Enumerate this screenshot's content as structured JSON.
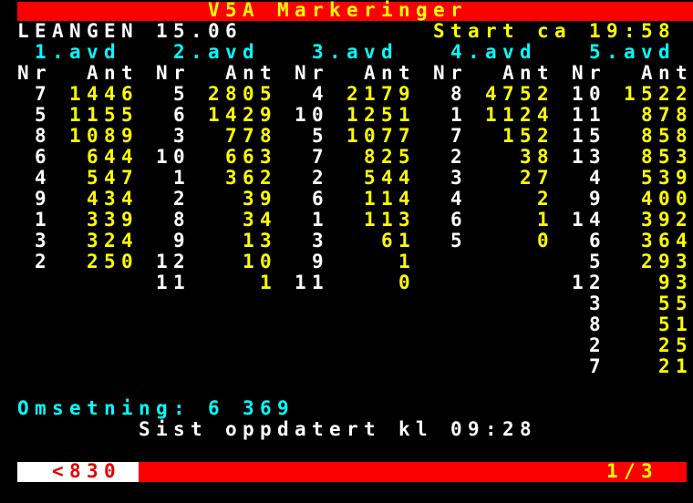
{
  "header": {
    "title": "V5A Markeringer",
    "venue": "LEANGEN 15.06",
    "start_time": "Start ca 19:58"
  },
  "table": {
    "nr_header": "Nr",
    "ant_header": "Ant",
    "columns": [
      {
        "label": "1.avd",
        "rows": [
          [
            7,
            1446
          ],
          [
            5,
            1155
          ],
          [
            8,
            1089
          ],
          [
            6,
            644
          ],
          [
            4,
            547
          ],
          [
            9,
            434
          ],
          [
            1,
            339
          ],
          [
            3,
            324
          ],
          [
            2,
            250
          ]
        ]
      },
      {
        "label": "2.avd",
        "rows": [
          [
            5,
            2805
          ],
          [
            6,
            1429
          ],
          [
            3,
            778
          ],
          [
            10,
            663
          ],
          [
            1,
            362
          ],
          [
            2,
            39
          ],
          [
            8,
            34
          ],
          [
            9,
            13
          ],
          [
            12,
            10
          ],
          [
            11,
            1
          ]
        ]
      },
      {
        "label": "3.avd",
        "rows": [
          [
            4,
            2179
          ],
          [
            10,
            1251
          ],
          [
            5,
            1077
          ],
          [
            7,
            825
          ],
          [
            2,
            544
          ],
          [
            6,
            114
          ],
          [
            1,
            113
          ],
          [
            3,
            61
          ],
          [
            9,
            1
          ],
          [
            11,
            0
          ]
        ]
      },
      {
        "label": "4.avd",
        "rows": [
          [
            8,
            4752
          ],
          [
            1,
            1124
          ],
          [
            7,
            152
          ],
          [
            2,
            38
          ],
          [
            3,
            27
          ],
          [
            4,
            2
          ],
          [
            6,
            1
          ],
          [
            5,
            0
          ]
        ]
      },
      {
        "label": "5.avd",
        "rows": [
          [
            10,
            1522
          ],
          [
            11,
            878
          ],
          [
            15,
            858
          ],
          [
            13,
            853
          ],
          [
            4,
            539
          ],
          [
            9,
            400
          ],
          [
            14,
            392
          ],
          [
            6,
            364
          ],
          [
            5,
            293
          ],
          [
            12,
            93
          ],
          [
            3,
            55
          ],
          [
            8,
            51
          ],
          [
            2,
            25
          ],
          [
            7,
            21
          ]
        ]
      }
    ]
  },
  "footer": {
    "omsetning_label": "Omsetning:",
    "omsetning_value": "6 369",
    "updated": "Sist oppdatert kl 09:28",
    "page_ref": "<830",
    "page_num": "1/3"
  },
  "colors": {
    "background": "#000000",
    "bar_red": "#fa0000",
    "text_yellow": "#ffff00",
    "text_cyan": "#00ffff",
    "text_white": "#ffffff",
    "text_red": "#e00000"
  }
}
